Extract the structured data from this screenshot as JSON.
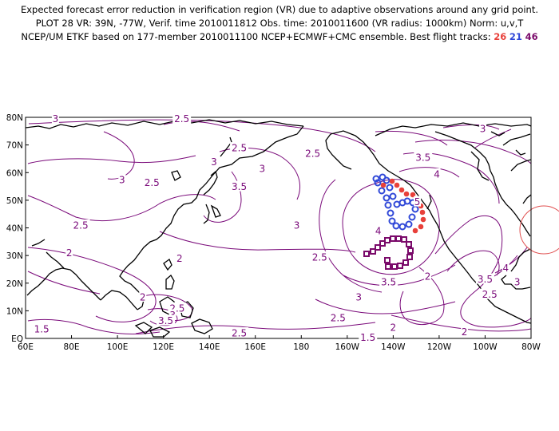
{
  "header": {
    "line1": "Expected forecast error reduction in verification region (VR) due to adaptive observations around any grid point.",
    "line2": "PLOT 28 VR: 39N, -77W, Verif. time 2010011812 Obs. time: 2010011600 (VR radius: 1000km) Norm: u,v,T",
    "line3_prefix": "NCEP/UM ETKF based on 177-member 2010011100 NCEP+ECMWF+CMC ensemble. Best flight tracks: ",
    "tracks": [
      {
        "label": "26",
        "color": "#e8403a"
      },
      {
        "label": "21",
        "color": "#3048d8"
      },
      {
        "label": "46",
        "color": "#7a0a6a"
      }
    ]
  },
  "map": {
    "lat_labels": [
      "80N",
      "70N",
      "60N",
      "50N",
      "40N",
      "30N",
      "20N",
      "10N",
      "EQ"
    ],
    "lon_labels": [
      "60E",
      "80E",
      "100E",
      "120E",
      "140E",
      "160E",
      "180",
      "160W",
      "140W",
      "120W",
      "100W",
      "80W"
    ],
    "contour_color": "#7a0a7a",
    "coast_color": "#000000",
    "vr_circle_color": "#e05050",
    "verification_center": {
      "lat": 39,
      "lon": -77
    },
    "contour_labels": [
      {
        "text": "3",
        "lat": 79.5,
        "lon": 73
      },
      {
        "text": "2.5",
        "lat": 79.5,
        "lon": 128
      },
      {
        "text": "2.5",
        "lat": 69,
        "lon": 153
      },
      {
        "text": "2.5",
        "lat": 67,
        "lon": -175
      },
      {
        "text": "3",
        "lat": 64,
        "lon": 142
      },
      {
        "text": "3",
        "lat": 61.5,
        "lon": 163
      },
      {
        "text": "3",
        "lat": 57.5,
        "lon": 102
      },
      {
        "text": "2.5",
        "lat": 56.5,
        "lon": 115
      },
      {
        "text": "3.5",
        "lat": 55,
        "lon": 153
      },
      {
        "text": "2.5",
        "lat": 41,
        "lon": 84
      },
      {
        "text": "3",
        "lat": 41,
        "lon": 178
      },
      {
        "text": "2",
        "lat": 31,
        "lon": 79
      },
      {
        "text": "2",
        "lat": 29,
        "lon": 127
      },
      {
        "text": "2.5",
        "lat": 29.5,
        "lon": -172
      },
      {
        "text": "2",
        "lat": 15,
        "lon": 111
      },
      {
        "text": "2.5",
        "lat": 11,
        "lon": 126
      },
      {
        "text": "3",
        "lat": 8.5,
        "lon": 124
      },
      {
        "text": "3.5",
        "lat": 6.5,
        "lon": 121
      },
      {
        "text": "1.5",
        "lat": 3.5,
        "lon": 67
      },
      {
        "text": "2.5",
        "lat": 2,
        "lon": 153
      },
      {
        "text": "2.5",
        "lat": 7.5,
        "lon": -164
      },
      {
        "text": "3",
        "lat": 15,
        "lon": -155
      },
      {
        "text": "1.5",
        "lat": 0.5,
        "lon": -151
      },
      {
        "text": "2",
        "lat": 4,
        "lon": -140
      },
      {
        "text": "2",
        "lat": 2.5,
        "lon": -109
      },
      {
        "text": "3.5",
        "lat": 20.5,
        "lon": -142
      },
      {
        "text": "4",
        "lat": 39,
        "lon": -146.5
      },
      {
        "text": "4",
        "lat": 59.5,
        "lon": -121
      },
      {
        "text": "3.5",
        "lat": 65.5,
        "lon": -127
      },
      {
        "text": "5",
        "lat": 49.5,
        "lon": -129.5
      },
      {
        "text": "3",
        "lat": 76,
        "lon": -101
      },
      {
        "text": "2",
        "lat": 22.5,
        "lon": -125
      },
      {
        "text": "4",
        "lat": 25.5,
        "lon": -91
      },
      {
        "text": "3.5",
        "lat": 21.5,
        "lon": -100
      },
      {
        "text": "2.5",
        "lat": 16,
        "lon": -98
      },
      {
        "text": "3",
        "lat": 20.5,
        "lon": -86
      }
    ]
  }
}
